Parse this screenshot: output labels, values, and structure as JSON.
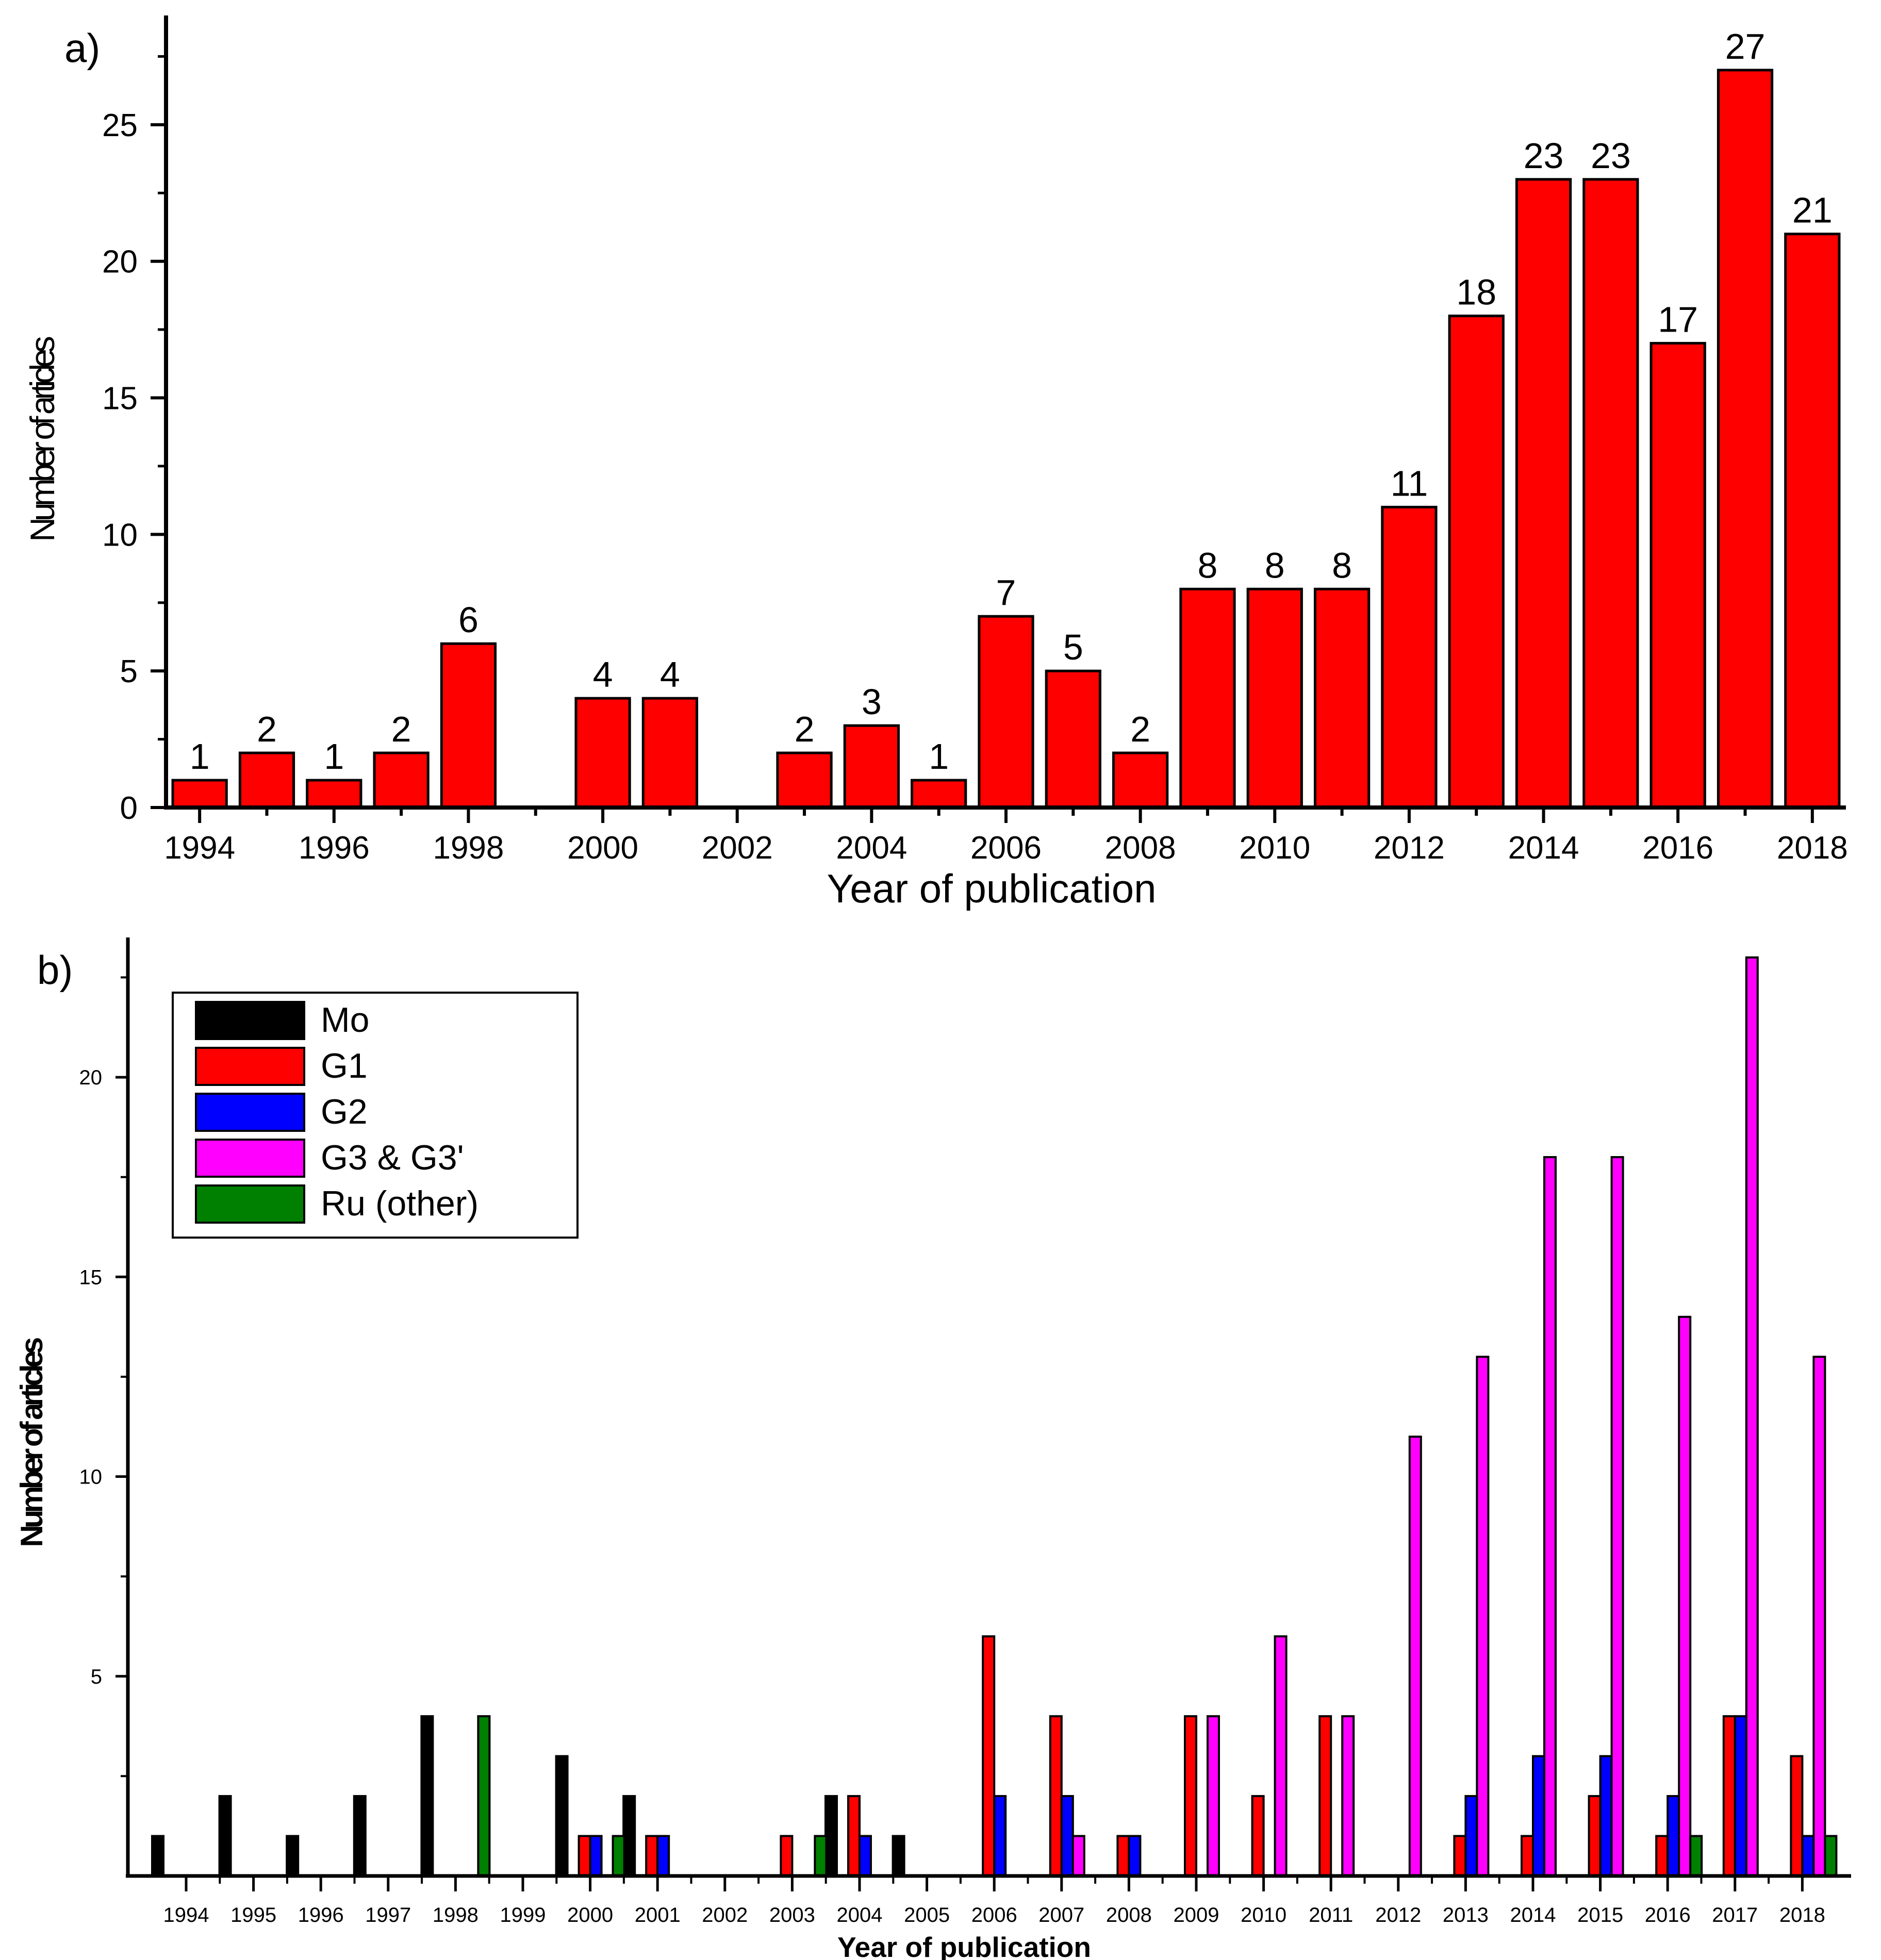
{
  "chart_data": [
    {
      "panel_label": "a)",
      "type": "bar",
      "xlabel": "Year of publication",
      "ylabel": "Number of articles",
      "ylim": [
        0,
        29
      ],
      "yticks": [
        0,
        5,
        10,
        15,
        20,
        25
      ],
      "xlim": [
        1993.5,
        2018.5
      ],
      "xticks": [
        "1994",
        "1996",
        "1998",
        "2000",
        "2002",
        "2004",
        "2006",
        "2008",
        "2010",
        "2012",
        "2014",
        "2016",
        "2018"
      ],
      "bar_color": "#ff0000",
      "categories": [
        "1994",
        "1995",
        "1996",
        "1997",
        "1998",
        "2000",
        "2001",
        "2003",
        "2004",
        "2005",
        "2006",
        "2007",
        "2008",
        "2009",
        "2010",
        "2011",
        "2012",
        "2013",
        "2014",
        "2015",
        "2016",
        "2017",
        "2018"
      ],
      "values": [
        1,
        2,
        1,
        2,
        6,
        4,
        4,
        2,
        3,
        1,
        7,
        5,
        2,
        8,
        8,
        8,
        11,
        18,
        23,
        23,
        17,
        27,
        21
      ],
      "data_labels": [
        "1",
        "2",
        "1",
        "2",
        "6",
        "4",
        "4",
        "2",
        "3",
        "1",
        "7",
        "5",
        "2",
        "8",
        "8",
        "8",
        "11",
        "18",
        "23",
        "23",
        "17",
        "27",
        "21"
      ]
    },
    {
      "panel_label": "b)",
      "type": "bar",
      "xlabel": "Year of publication",
      "ylabel": "Number of articles",
      "ylim": [
        0,
        23.5
      ],
      "yticks": [
        5,
        10,
        15,
        20
      ],
      "categories": [
        "1994",
        "1995",
        "1996",
        "1997",
        "1998",
        "1999",
        "2000",
        "2001",
        "2002",
        "2003",
        "2004",
        "2005",
        "2006",
        "2007",
        "2008",
        "2009",
        "2010",
        "2011",
        "2012",
        "2013",
        "2014",
        "2015",
        "2016",
        "2017",
        "2018"
      ],
      "series": [
        {
          "name": "Mo",
          "color": "#000000",
          "values": [
            1,
            2,
            1,
            2,
            4,
            0,
            3,
            2,
            0,
            0,
            2,
            1,
            0,
            0,
            0,
            0,
            0,
            0,
            0,
            0,
            0,
            0,
            0,
            0,
            0
          ]
        },
        {
          "name": "G1",
          "color": "#ff0000",
          "values": [
            0,
            0,
            0,
            0,
            0,
            0,
            1,
            1,
            0,
            1,
            2,
            0,
            6,
            4,
            1,
            4,
            2,
            4,
            0,
            1,
            1,
            2,
            1,
            4,
            3
          ]
        },
        {
          "name": "G2",
          "color": "#0000ff",
          "values": [
            0,
            0,
            0,
            0,
            0,
            0,
            1,
            1,
            0,
            0,
            1,
            0,
            2,
            2,
            1,
            0,
            0,
            0,
            0,
            2,
            3,
            3,
            2,
            4,
            1
          ]
        },
        {
          "name": "G3 & G3'",
          "color": "#ff00ff",
          "values": [
            0,
            0,
            0,
            0,
            0,
            0,
            0,
            0,
            0,
            0,
            0,
            0,
            0,
            1,
            0,
            4,
            6,
            4,
            11,
            13,
            18,
            18,
            14,
            23,
            13
          ]
        },
        {
          "name": "Ru (other)",
          "color": "#008000",
          "values": [
            0,
            0,
            0,
            0,
            4,
            0,
            1,
            0,
            0,
            1,
            0,
            0,
            0,
            0,
            0,
            0,
            0,
            0,
            0,
            0,
            0,
            0,
            1,
            0,
            1
          ]
        }
      ],
      "legend_position": "top-left"
    }
  ]
}
